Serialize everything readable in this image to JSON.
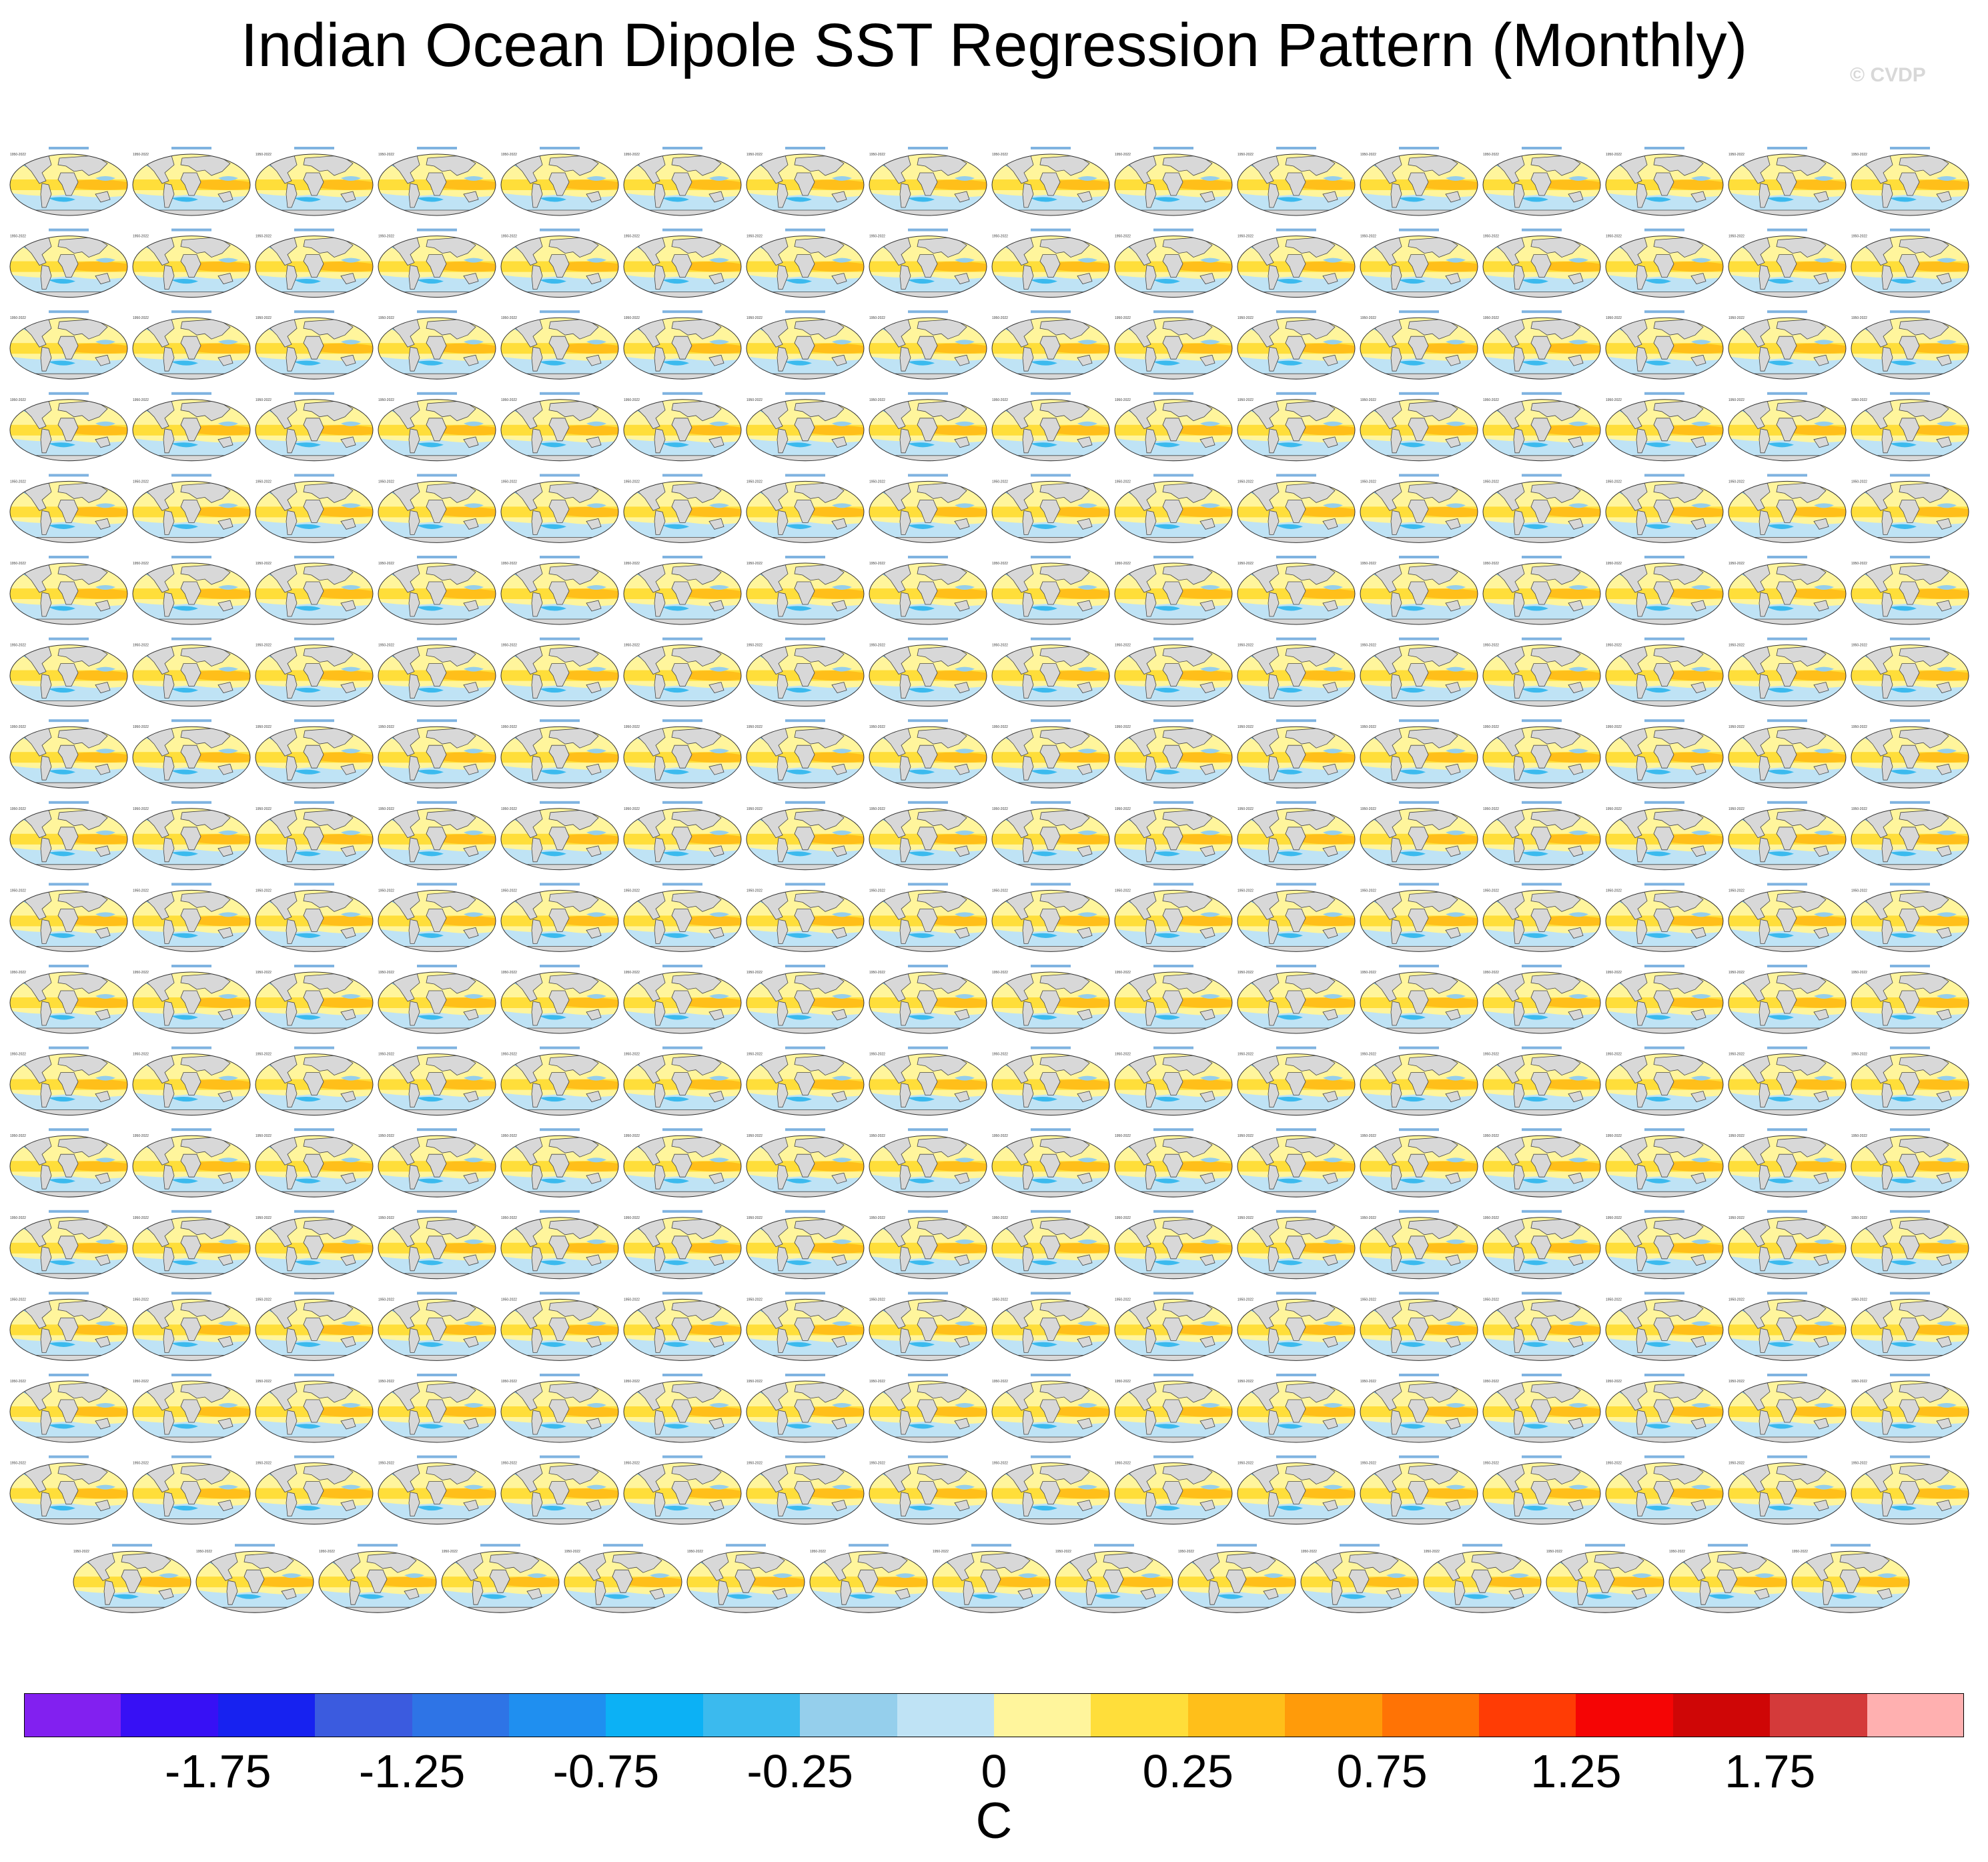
{
  "title": "Indian Ocean Dipole SST Regression Pattern (Monthly)",
  "credit": "© CVDP",
  "colorbar": {
    "units": "C",
    "colors": [
      "#8220f0",
      "#3710f5",
      "#1722f0",
      "#3b5bdf",
      "#2e74e6",
      "#1f8ff0",
      "#0cb1f5",
      "#3bbaee",
      "#95cfec",
      "#bfe3f5",
      "#fff59c",
      "#ffde3a",
      "#ffbf1a",
      "#ff9b0a",
      "#ff7305",
      "#ff3c05",
      "#f50505",
      "#cf0606",
      "#d43a3a",
      "#ffb0b0"
    ],
    "tick_labels": [
      "-1.75",
      "-1.25",
      "-0.75",
      "-0.25",
      "0",
      "0.25",
      "0.75",
      "1.25",
      "1.75"
    ]
  },
  "panel_grid": {
    "full_rows": 17,
    "columns": 16,
    "last_row_panels": 15,
    "total_panels": 287,
    "map_colors": {
      "ocean_warm": "#fff59c",
      "ocean_warm2": "#ffde3a",
      "ocean_warm3": "#ffbf1a",
      "ocean_cool": "#bfe3f5",
      "ocean_cool2": "#95cfec",
      "ocean_cool3": "#3bbaee",
      "land": "#d8d8d8"
    }
  }
}
